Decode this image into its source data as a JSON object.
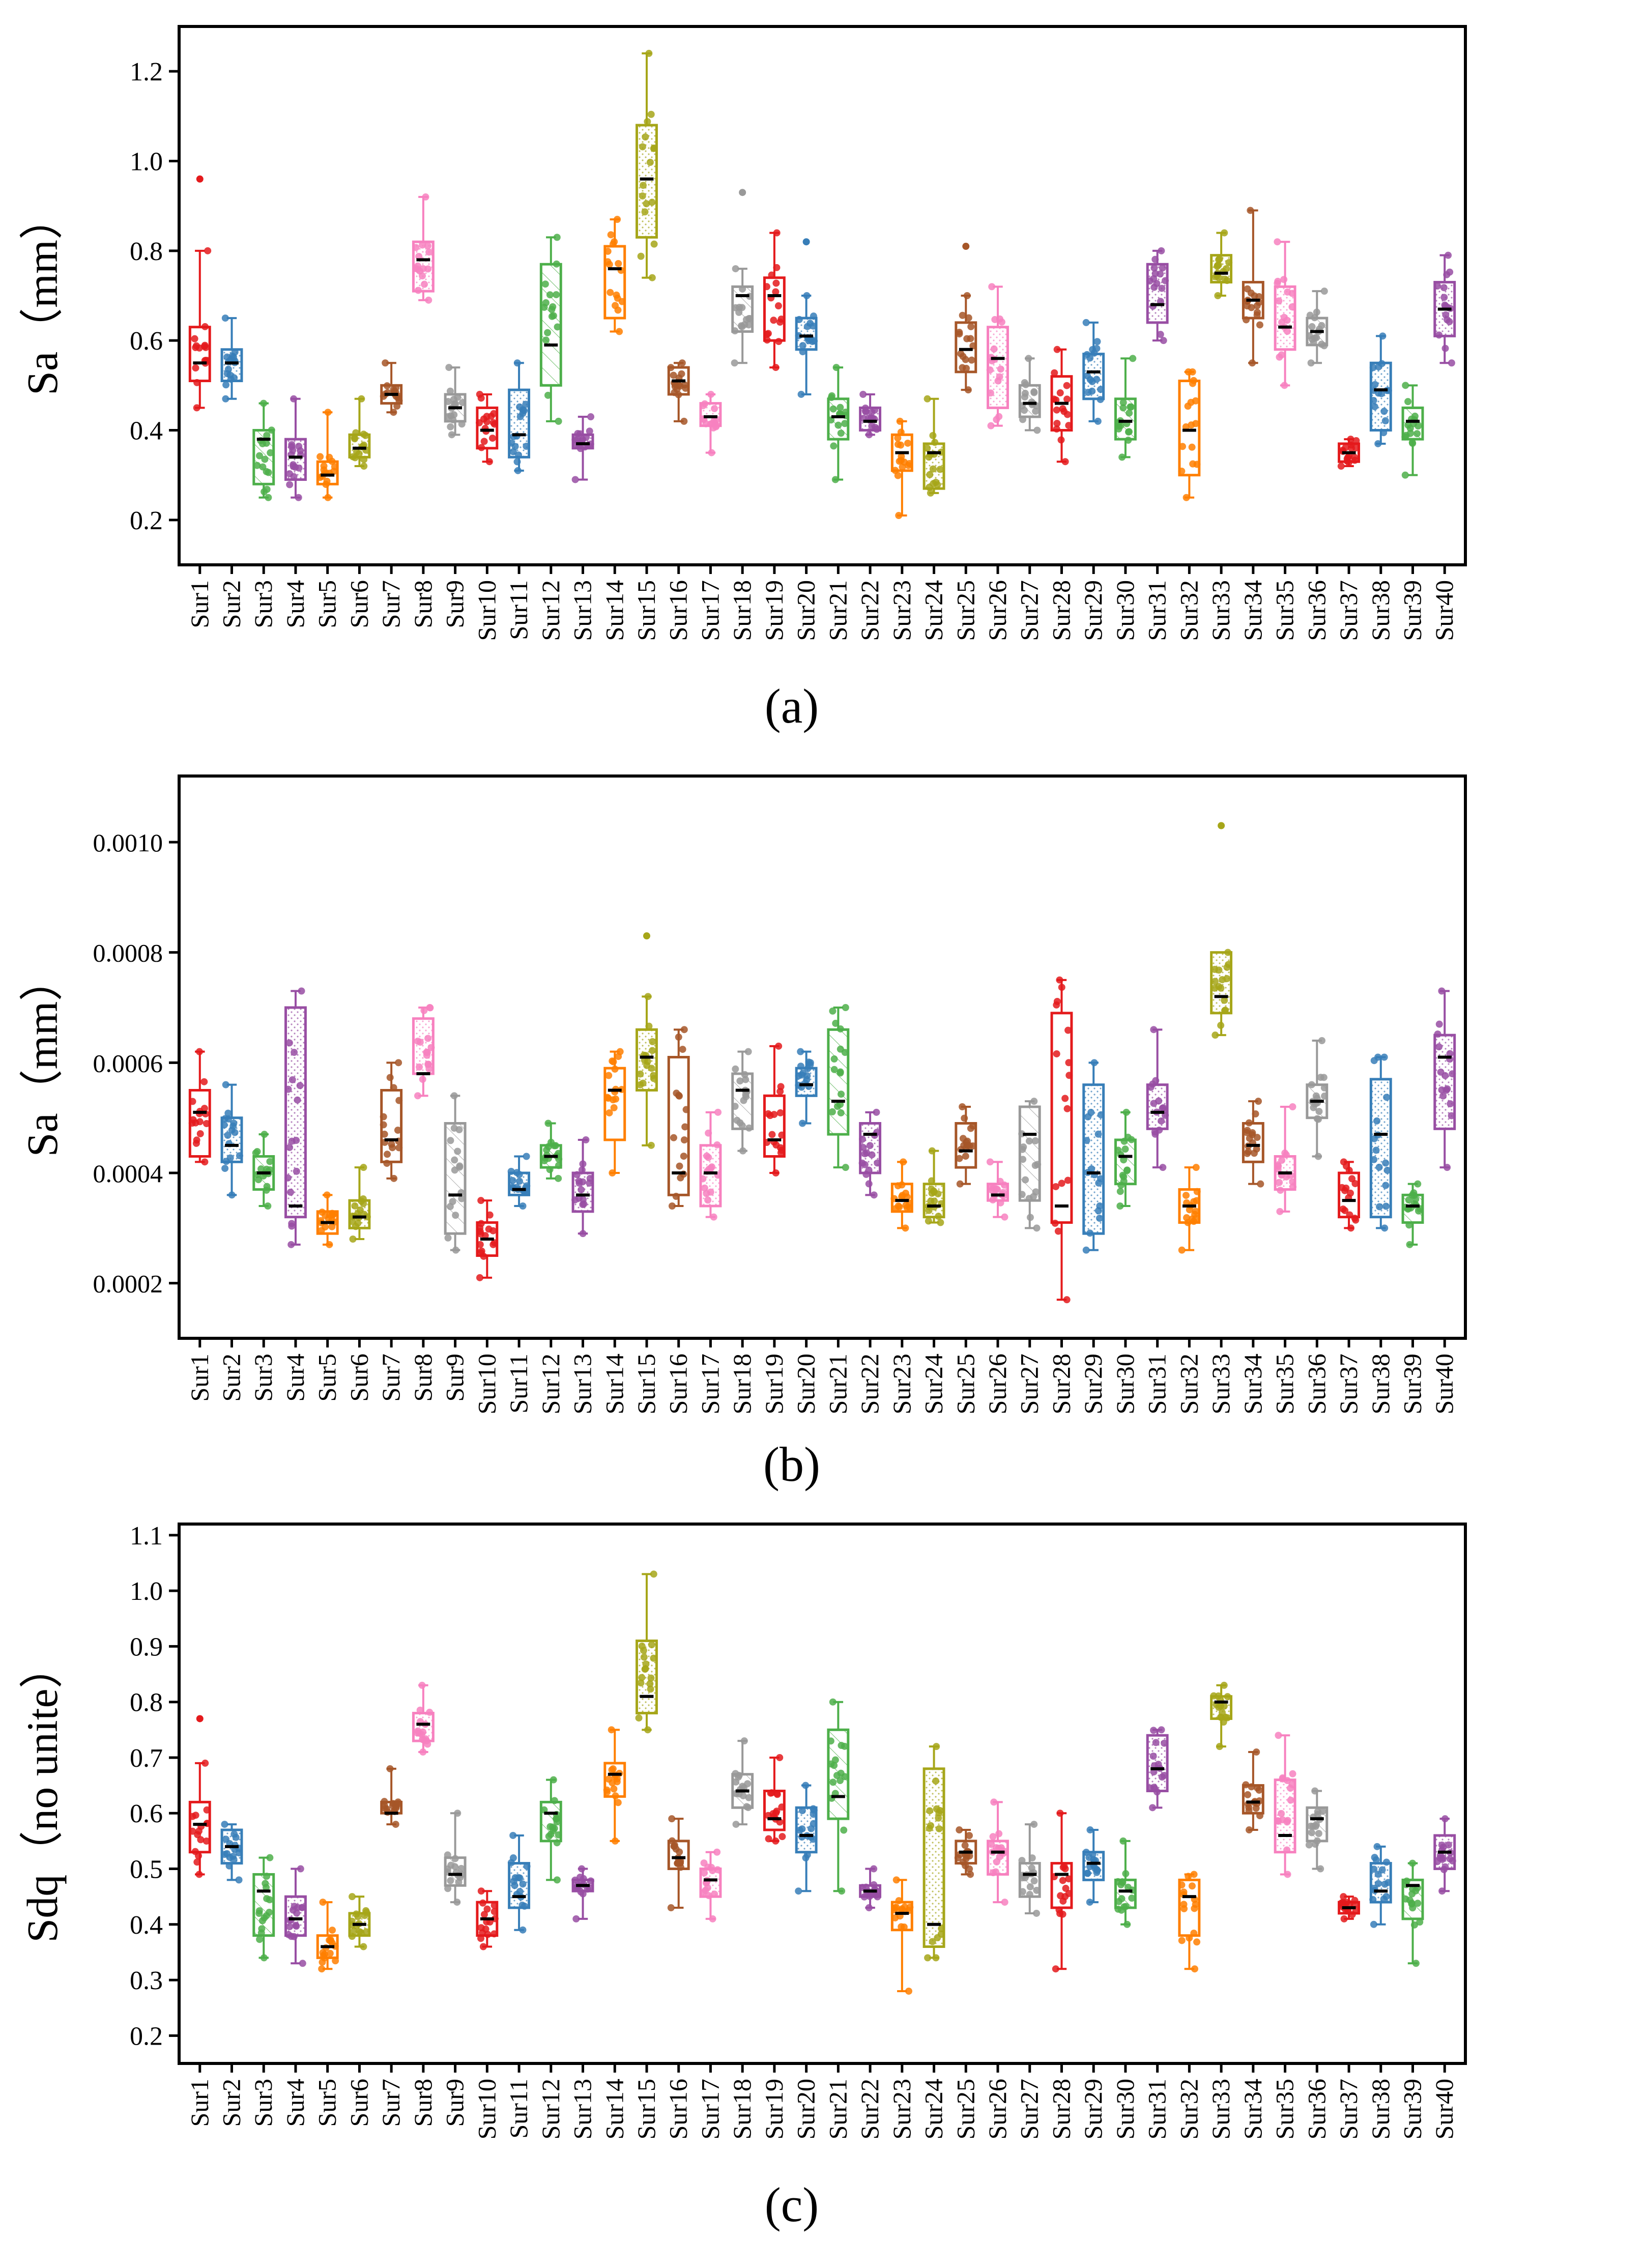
{
  "figure": {
    "panel_labels": [
      "(a)",
      "(b)",
      "(c)"
    ]
  },
  "palette": [
    "#e41a1c",
    "#377eb8",
    "#4daf4a",
    "#984ea3",
    "#ff7f00",
    "#a6a619",
    "#a65628",
    "#f781bf",
    "#999999"
  ],
  "chart_data": [
    {
      "type": "box",
      "panel": "(a)",
      "ylabel": "Sa（mm）",
      "ylim": [
        0.1,
        1.3
      ],
      "yticks": [
        0.2,
        0.4,
        0.6,
        0.8,
        1.0,
        1.2
      ],
      "ytick_labels": [
        "0.2",
        "0.4",
        "0.6",
        "0.8",
        "1.0",
        "1.2"
      ],
      "categories": [
        "Sur1",
        "Sur2",
        "Sur3",
        "Sur4",
        "Sur5",
        "Sur6",
        "Sur7",
        "Sur8",
        "Sur9",
        "Sur10",
        "Sur11",
        "Sur12",
        "Sur13",
        "Sur14",
        "Sur15",
        "Sur16",
        "Sur17",
        "Sur18",
        "Sur19",
        "Sur20",
        "Sur21",
        "Sur22",
        "Sur23",
        "Sur24",
        "Sur25",
        "Sur26",
        "Sur27",
        "Sur28",
        "Sur29",
        "Sur30",
        "Sur31",
        "Sur32",
        "Sur33",
        "Sur34",
        "Sur35",
        "Sur36",
        "Sur37",
        "Sur38",
        "Sur39",
        "Sur40"
      ],
      "boxes": [
        [
          0.45,
          0.51,
          0.55,
          0.63,
          0.8,
          0.96
        ],
        [
          0.47,
          0.51,
          0.55,
          0.58,
          0.65
        ],
        [
          0.25,
          0.28,
          0.38,
          0.4,
          0.46
        ],
        [
          0.25,
          0.29,
          0.34,
          0.38,
          0.47
        ],
        [
          0.25,
          0.28,
          0.3,
          0.33,
          0.44
        ],
        [
          0.32,
          0.34,
          0.36,
          0.39,
          0.47
        ],
        [
          0.44,
          0.46,
          0.48,
          0.5,
          0.55
        ],
        [
          0.69,
          0.71,
          0.78,
          0.82,
          0.92
        ],
        [
          0.39,
          0.42,
          0.45,
          0.48,
          0.54
        ],
        [
          0.33,
          0.36,
          0.4,
          0.45,
          0.48
        ],
        [
          0.31,
          0.34,
          0.39,
          0.49,
          0.55
        ],
        [
          0.42,
          0.5,
          0.59,
          0.77,
          0.83
        ],
        [
          0.29,
          0.36,
          0.37,
          0.39,
          0.43
        ],
        [
          0.62,
          0.65,
          0.76,
          0.81,
          0.87
        ],
        [
          0.74,
          0.83,
          0.96,
          1.08,
          1.24
        ],
        [
          0.42,
          0.48,
          0.51,
          0.54,
          0.55
        ],
        [
          0.35,
          0.41,
          0.43,
          0.46,
          0.48
        ],
        [
          0.55,
          0.62,
          0.7,
          0.72,
          0.76,
          0.93
        ],
        [
          0.54,
          0.6,
          0.7,
          0.74,
          0.84
        ],
        [
          0.48,
          0.58,
          0.61,
          0.65,
          0.7,
          0.82
        ],
        [
          0.29,
          0.38,
          0.43,
          0.47,
          0.54
        ],
        [
          0.39,
          0.4,
          0.42,
          0.45,
          0.48
        ],
        [
          0.21,
          0.31,
          0.35,
          0.39,
          0.42
        ],
        [
          0.26,
          0.27,
          0.35,
          0.37,
          0.47
        ],
        [
          0.49,
          0.53,
          0.58,
          0.64,
          0.7,
          0.81
        ],
        [
          0.41,
          0.45,
          0.56,
          0.63,
          0.72
        ],
        [
          0.4,
          0.43,
          0.46,
          0.5,
          0.56
        ],
        [
          0.33,
          0.4,
          0.46,
          0.52,
          0.58
        ],
        [
          0.42,
          0.47,
          0.53,
          0.57,
          0.64
        ],
        [
          0.34,
          0.38,
          0.42,
          0.47,
          0.56
        ],
        [
          0.6,
          0.64,
          0.68,
          0.77,
          0.8
        ],
        [
          0.25,
          0.3,
          0.4,
          0.51,
          0.53
        ],
        [
          0.7,
          0.73,
          0.75,
          0.79,
          0.84
        ],
        [
          0.55,
          0.65,
          0.69,
          0.73,
          0.89
        ],
        [
          0.5,
          0.58,
          0.63,
          0.72,
          0.82
        ],
        [
          0.55,
          0.59,
          0.62,
          0.65,
          0.71
        ],
        [
          0.32,
          0.33,
          0.35,
          0.37,
          0.38
        ],
        [
          0.37,
          0.4,
          0.49,
          0.55,
          0.61
        ],
        [
          0.3,
          0.38,
          0.42,
          0.45,
          0.5
        ],
        [
          0.55,
          0.61,
          0.67,
          0.73,
          0.79
        ]
      ]
    },
    {
      "type": "box",
      "panel": "(b)",
      "ylabel": "Sa（mm）",
      "ylim": [
        0.0001,
        0.00112
      ],
      "yticks": [
        0.0002,
        0.0004,
        0.0006,
        0.0008,
        0.001
      ],
      "ytick_labels": [
        "0.0002",
        "0.0004",
        "0.0006",
        "0.0008",
        "0.0010"
      ],
      "categories": [
        "Sur1",
        "Sur2",
        "Sur3",
        "Sur4",
        "Sur5",
        "Sur6",
        "Sur7",
        "Sur8",
        "Sur9",
        "Sur10",
        "Sur11",
        "Sur12",
        "Sur13",
        "Sur14",
        "Sur15",
        "Sur16",
        "Sur17",
        "Sur18",
        "Sur19",
        "Sur20",
        "Sur21",
        "Sur22",
        "Sur23",
        "Sur24",
        "Sur25",
        "Sur26",
        "Sur27",
        "Sur28",
        "Sur29",
        "Sur30",
        "Sur31",
        "Sur32",
        "Sur33",
        "Sur34",
        "Sur35",
        "Sur36",
        "Sur37",
        "Sur38",
        "Sur39",
        "Sur40"
      ],
      "boxes": [
        [
          0.00042,
          0.00043,
          0.00051,
          0.00055,
          0.00062
        ],
        [
          0.00036,
          0.00042,
          0.00045,
          0.0005,
          0.00056
        ],
        [
          0.00034,
          0.00037,
          0.0004,
          0.00043,
          0.00047
        ],
        [
          0.00027,
          0.00032,
          0.00034,
          0.0007,
          0.00073
        ],
        [
          0.00027,
          0.00029,
          0.00031,
          0.00033,
          0.00036
        ],
        [
          0.00028,
          0.0003,
          0.00032,
          0.00035,
          0.00041
        ],
        [
          0.00039,
          0.00042,
          0.00046,
          0.00055,
          0.0006
        ],
        [
          0.00054,
          0.00058,
          0.00058,
          0.00068,
          0.0007
        ],
        [
          0.00026,
          0.00029,
          0.00036,
          0.00049,
          0.00054
        ],
        [
          0.00021,
          0.00025,
          0.00028,
          0.00031,
          0.00035
        ],
        [
          0.00034,
          0.00036,
          0.00037,
          0.0004,
          0.00043
        ],
        [
          0.00039,
          0.00041,
          0.00043,
          0.00045,
          0.00049
        ],
        [
          0.00029,
          0.00033,
          0.00036,
          0.0004,
          0.00046
        ],
        [
          0.0004,
          0.00046,
          0.00055,
          0.00059,
          0.00062
        ],
        [
          0.00045,
          0.00055,
          0.00061,
          0.00066,
          0.00072,
          0.00083
        ],
        [
          0.00034,
          0.00036,
          0.0004,
          0.00061,
          0.00066
        ],
        [
          0.00032,
          0.00034,
          0.0004,
          0.00045,
          0.00051
        ],
        [
          0.00044,
          0.00048,
          0.00055,
          0.00058,
          0.00062
        ],
        [
          0.0004,
          0.00043,
          0.00046,
          0.00054,
          0.00063
        ],
        [
          0.00049,
          0.00054,
          0.00056,
          0.00059,
          0.00062
        ],
        [
          0.00041,
          0.00047,
          0.00053,
          0.00066,
          0.0007
        ],
        [
          0.00036,
          0.0004,
          0.00047,
          0.00049,
          0.00051
        ],
        [
          0.0003,
          0.00033,
          0.00035,
          0.00038,
          0.00042
        ],
        [
          0.00031,
          0.00032,
          0.00034,
          0.00038,
          0.00044
        ],
        [
          0.00038,
          0.00041,
          0.00044,
          0.00049,
          0.00052
        ],
        [
          0.00032,
          0.00035,
          0.00036,
          0.00038,
          0.00042
        ],
        [
          0.0003,
          0.00035,
          0.00047,
          0.00052,
          0.00053
        ],
        [
          0.00017,
          0.00031,
          0.00034,
          0.00069,
          0.00075
        ],
        [
          0.00026,
          0.00029,
          0.0004,
          0.00056,
          0.0006
        ],
        [
          0.00034,
          0.00038,
          0.00043,
          0.00046,
          0.00051
        ],
        [
          0.00041,
          0.00048,
          0.00051,
          0.00056,
          0.00066
        ],
        [
          0.00026,
          0.00031,
          0.00034,
          0.00037,
          0.00041
        ],
        [
          0.00065,
          0.00069,
          0.00072,
          0.0008,
          0.0008,
          0.00103
        ],
        [
          0.00038,
          0.00042,
          0.00045,
          0.00049,
          0.00053
        ],
        [
          0.00033,
          0.00037,
          0.0004,
          0.00043,
          0.00052
        ],
        [
          0.00043,
          0.0005,
          0.00053,
          0.00056,
          0.00064
        ],
        [
          0.0003,
          0.00032,
          0.00035,
          0.0004,
          0.00042
        ],
        [
          0.0003,
          0.00032,
          0.00047,
          0.00057,
          0.00061
        ],
        [
          0.00027,
          0.00031,
          0.00034,
          0.00036,
          0.00038
        ],
        [
          0.00041,
          0.00048,
          0.00061,
          0.00065,
          0.00073
        ]
      ]
    },
    {
      "type": "box",
      "panel": "(c)",
      "ylabel": "Sdq（no unite）",
      "ylim": [
        0.15,
        1.12
      ],
      "yticks": [
        0.2,
        0.3,
        0.4,
        0.5,
        0.6,
        0.7,
        0.8,
        0.9,
        1.0,
        1.1
      ],
      "ytick_labels": [
        "0.2",
        "0.3",
        "0.4",
        "0.5",
        "0.6",
        "0.7",
        "0.8",
        "0.9",
        "1.0",
        "1.1"
      ],
      "categories": [
        "Sur1",
        "Sur2",
        "Sur3",
        "Sur4",
        "Sur5",
        "Sur6",
        "Sur7",
        "Sur8",
        "Sur9",
        "Sur10",
        "Sur11",
        "Sur12",
        "Sur13",
        "Sur14",
        "Sur15",
        "Sur16",
        "Sur17",
        "Sur18",
        "Sur19",
        "Sur20",
        "Sur21",
        "Sur22",
        "Sur23",
        "Sur24",
        "Sur25",
        "Sur26",
        "Sur27",
        "Sur28",
        "Sur29",
        "Sur30",
        "Sur31",
        "Sur32",
        "Sur33",
        "Sur34",
        "Sur35",
        "Sur36",
        "Sur37",
        "Sur38",
        "Sur39",
        "Sur40"
      ],
      "boxes": [
        [
          0.49,
          0.53,
          0.58,
          0.62,
          0.69,
          0.77
        ],
        [
          0.48,
          0.51,
          0.54,
          0.57,
          0.58
        ],
        [
          0.34,
          0.38,
          0.46,
          0.49,
          0.52
        ],
        [
          0.33,
          0.38,
          0.41,
          0.45,
          0.5
        ],
        [
          0.32,
          0.34,
          0.36,
          0.38,
          0.44
        ],
        [
          0.36,
          0.38,
          0.4,
          0.42,
          0.45
        ],
        [
          0.58,
          0.6,
          0.6,
          0.62,
          0.68
        ],
        [
          0.71,
          0.73,
          0.76,
          0.78,
          0.83
        ],
        [
          0.44,
          0.47,
          0.49,
          0.52,
          0.6
        ],
        [
          0.36,
          0.38,
          0.41,
          0.44,
          0.46
        ],
        [
          0.39,
          0.43,
          0.45,
          0.51,
          0.56
        ],
        [
          0.48,
          0.55,
          0.6,
          0.62,
          0.66
        ],
        [
          0.41,
          0.46,
          0.47,
          0.48,
          0.5
        ],
        [
          0.55,
          0.63,
          0.67,
          0.69,
          0.75
        ],
        [
          0.75,
          0.78,
          0.81,
          0.91,
          1.03
        ],
        [
          0.43,
          0.5,
          0.52,
          0.55,
          0.59
        ],
        [
          0.41,
          0.45,
          0.48,
          0.5,
          0.53
        ],
        [
          0.58,
          0.61,
          0.64,
          0.67,
          0.73
        ],
        [
          0.55,
          0.57,
          0.59,
          0.64,
          0.7
        ],
        [
          0.46,
          0.53,
          0.56,
          0.61,
          0.65
        ],
        [
          0.46,
          0.59,
          0.63,
          0.75,
          0.8
        ],
        [
          0.43,
          0.45,
          0.46,
          0.47,
          0.5
        ],
        [
          0.28,
          0.39,
          0.42,
          0.44,
          0.48
        ],
        [
          0.34,
          0.36,
          0.4,
          0.68,
          0.72
        ],
        [
          0.49,
          0.51,
          0.53,
          0.55,
          0.57
        ],
        [
          0.44,
          0.49,
          0.53,
          0.55,
          0.62
        ],
        [
          0.42,
          0.45,
          0.49,
          0.51,
          0.58
        ],
        [
          0.32,
          0.43,
          0.49,
          0.51,
          0.6
        ],
        [
          0.44,
          0.48,
          0.51,
          0.53,
          0.57
        ],
        [
          0.4,
          0.43,
          0.46,
          0.48,
          0.55
        ],
        [
          0.61,
          0.64,
          0.68,
          0.74,
          0.75
        ],
        [
          0.32,
          0.38,
          0.45,
          0.48,
          0.49
        ],
        [
          0.72,
          0.77,
          0.8,
          0.81,
          0.83
        ],
        [
          0.57,
          0.6,
          0.62,
          0.65,
          0.71
        ],
        [
          0.49,
          0.53,
          0.56,
          0.66,
          0.74
        ],
        [
          0.5,
          0.55,
          0.59,
          0.61,
          0.64
        ],
        [
          0.41,
          0.42,
          0.43,
          0.44,
          0.45
        ],
        [
          0.4,
          0.44,
          0.46,
          0.51,
          0.54
        ],
        [
          0.33,
          0.41,
          0.47,
          0.48,
          0.51
        ],
        [
          0.46,
          0.5,
          0.53,
          0.56,
          0.59
        ]
      ]
    }
  ]
}
